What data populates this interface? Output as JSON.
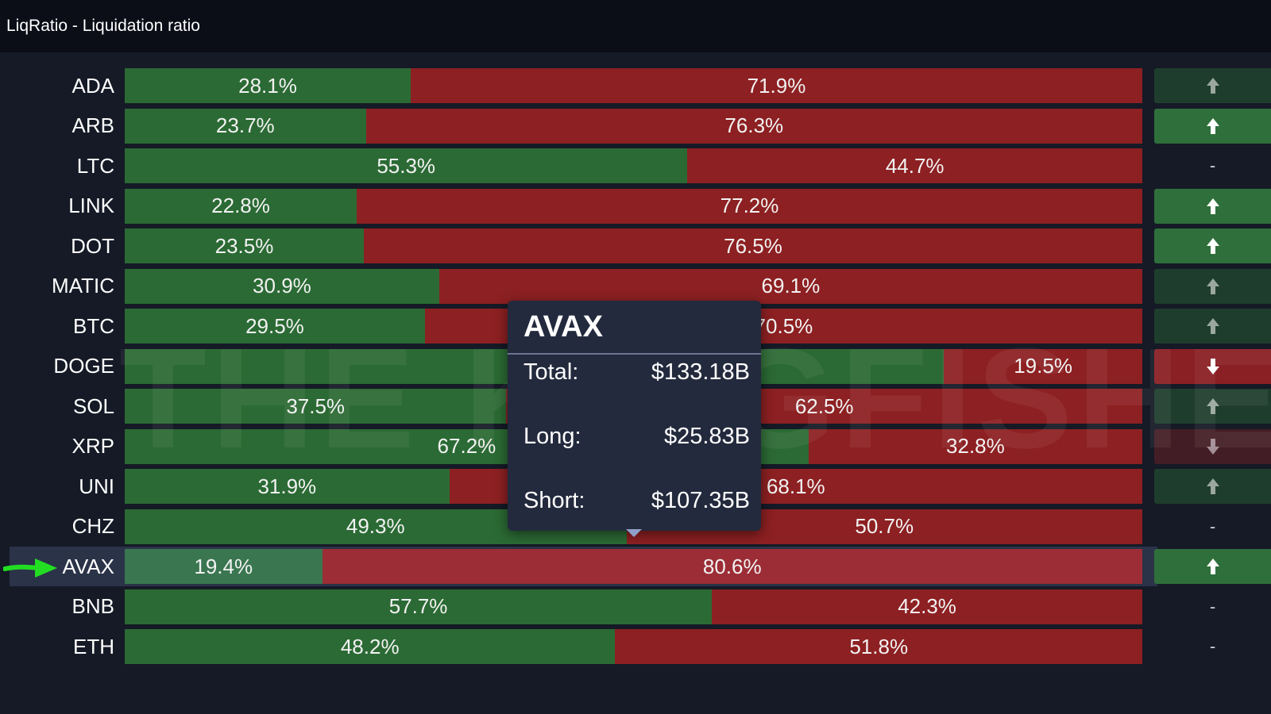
{
  "header": {
    "title": "LiqRatio - Liquidation ratio"
  },
  "colors": {
    "long": "#2b6a34",
    "short": "#8d2022",
    "background": "#151a26",
    "tooltip_bg": "#232a3d",
    "pointer_arrow": "#22dd22"
  },
  "rows": [
    {
      "symbol": "ADA",
      "long_pct": 28.1,
      "short_pct": 71.9,
      "long_label": "28.1%",
      "short_label": "71.9%",
      "trend": "up",
      "trend_strength": "weak",
      "trend_symbol": "up-arrow-icon"
    },
    {
      "symbol": "ARB",
      "long_pct": 23.7,
      "short_pct": 76.3,
      "long_label": "23.7%",
      "short_label": "76.3%",
      "trend": "up",
      "trend_strength": "strong",
      "trend_symbol": "up-arrow-icon"
    },
    {
      "symbol": "LTC",
      "long_pct": 55.3,
      "short_pct": 44.7,
      "long_label": "55.3%",
      "short_label": "44.7%",
      "trend": "none",
      "trend_strength": "none",
      "trend_symbol": "-"
    },
    {
      "symbol": "LINK",
      "long_pct": 22.8,
      "short_pct": 77.2,
      "long_label": "22.8%",
      "short_label": "77.2%",
      "trend": "up",
      "trend_strength": "strong",
      "trend_symbol": "up-arrow-icon"
    },
    {
      "symbol": "DOT",
      "long_pct": 23.5,
      "short_pct": 76.5,
      "long_label": "23.5%",
      "short_label": "76.5%",
      "trend": "up",
      "trend_strength": "strong",
      "trend_symbol": "up-arrow-icon"
    },
    {
      "symbol": "MATIC",
      "long_pct": 30.9,
      "short_pct": 69.1,
      "long_label": "30.9%",
      "short_label": "69.1%",
      "trend": "up",
      "trend_strength": "weak",
      "trend_symbol": "up-arrow-icon"
    },
    {
      "symbol": "BTC",
      "long_pct": 29.5,
      "short_pct": 70.5,
      "long_label": "29.5%",
      "short_label": "70.5%",
      "trend": "up",
      "trend_strength": "weak",
      "trend_symbol": "up-arrow-icon"
    },
    {
      "symbol": "DOGE",
      "long_pct": 80.5,
      "short_pct": 19.5,
      "long_label": "",
      "short_label": "19.5%",
      "trend": "down",
      "trend_strength": "strong",
      "trend_symbol": "down-arrow-icon"
    },
    {
      "symbol": "SOL",
      "long_pct": 37.5,
      "short_pct": 62.5,
      "long_label": "37.5%",
      "short_label": "62.5%",
      "trend": "up",
      "trend_strength": "weak",
      "trend_symbol": "up-arrow-icon"
    },
    {
      "symbol": "XRP",
      "long_pct": 67.2,
      "short_pct": 32.8,
      "long_label": "67.2%",
      "short_label": "32.8%",
      "trend": "down",
      "trend_strength": "weak",
      "trend_symbol": "down-arrow-icon"
    },
    {
      "symbol": "UNI",
      "long_pct": 31.9,
      "short_pct": 68.1,
      "long_label": "31.9%",
      "short_label": "68.1%",
      "trend": "up",
      "trend_strength": "weak",
      "trend_symbol": "up-arrow-icon"
    },
    {
      "symbol": "CHZ",
      "long_pct": 49.3,
      "short_pct": 50.7,
      "long_label": "49.3%",
      "short_label": "50.7%",
      "trend": "none",
      "trend_strength": "none",
      "trend_symbol": "-"
    },
    {
      "symbol": "AVAX",
      "long_pct": 19.4,
      "short_pct": 80.6,
      "long_label": "19.4%",
      "short_label": "80.6%",
      "trend": "up",
      "trend_strength": "strong",
      "trend_symbol": "up-arrow-icon",
      "highlighted": true
    },
    {
      "symbol": "BNB",
      "long_pct": 57.7,
      "short_pct": 42.3,
      "long_label": "57.7%",
      "short_label": "42.3%",
      "trend": "none",
      "trend_strength": "none",
      "trend_symbol": "-"
    },
    {
      "symbol": "ETH",
      "long_pct": 48.2,
      "short_pct": 51.8,
      "long_label": "48.2%",
      "short_label": "51.8%",
      "trend": "none",
      "trend_strength": "none",
      "trend_symbol": "-"
    }
  ],
  "tooltip": {
    "title": "AVAX",
    "total_label": "Total:",
    "total_value": "$133.18B",
    "long_label": "Long:",
    "long_value": "$25.83B",
    "short_label": "Short:",
    "short_value": "$107.35B"
  },
  "watermark": {
    "text": "THE KINGFISHER.io"
  }
}
